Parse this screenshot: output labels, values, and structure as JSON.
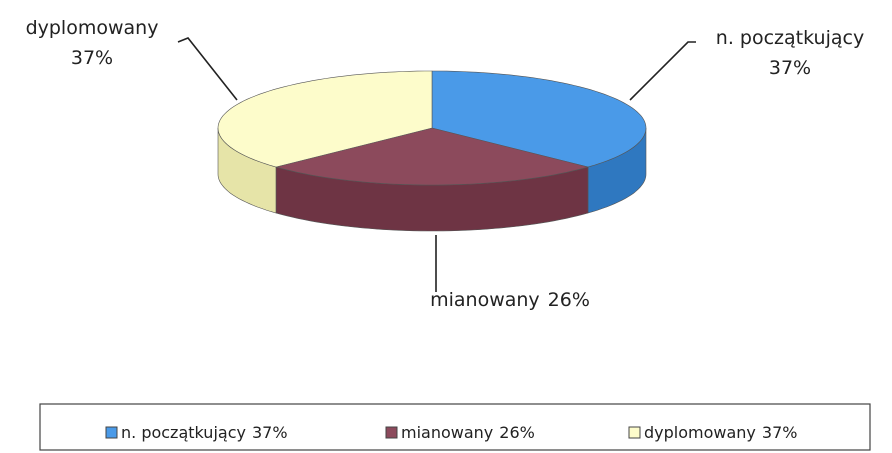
{
  "chart_data": {
    "type": "pie",
    "categories": [
      "n. początkujący",
      "mianowany",
      "dyplomowany"
    ],
    "values": [
      37,
      26,
      37
    ],
    "value_labels": [
      "37%",
      "26%",
      "37%"
    ],
    "colors": [
      "#4a9ae8",
      "#8c4a5c",
      "#fdfccb"
    ],
    "side_colors": [
      "#2f78c0",
      "#6e3444",
      "#e6e4a8"
    ],
    "legend": "bottom"
  }
}
